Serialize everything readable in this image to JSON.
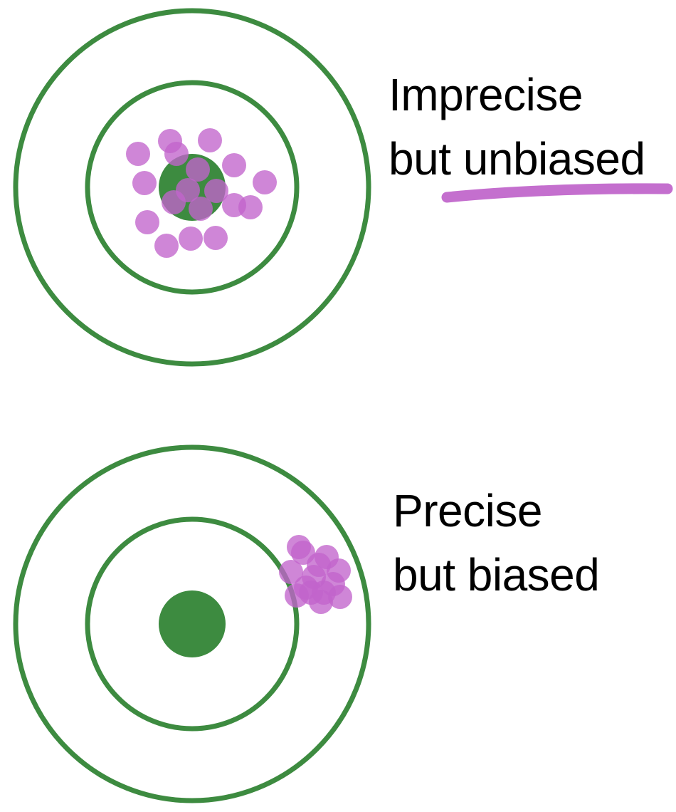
{
  "colors": {
    "target_green": "#3d8b40",
    "shot_purple": "#c164cc",
    "underline_purple": "#c46fce",
    "background": "#ffffff",
    "text": "#000000"
  },
  "targets": [
    {
      "id": "imprecise-unbiased",
      "label_line1": "Imprecise",
      "label_line2_prefix": "but ",
      "label_line2_emphasis": "unbiased",
      "emphasis_underlined": true,
      "shot_count": 21,
      "shots_centered_on_bullseye": true
    },
    {
      "id": "precise-biased",
      "label_line1": "Precise",
      "label_line2_prefix": "but biased",
      "label_line2_emphasis": "",
      "emphasis_underlined": false,
      "shot_count": 14,
      "shots_centered_on_bullseye": false
    }
  ]
}
